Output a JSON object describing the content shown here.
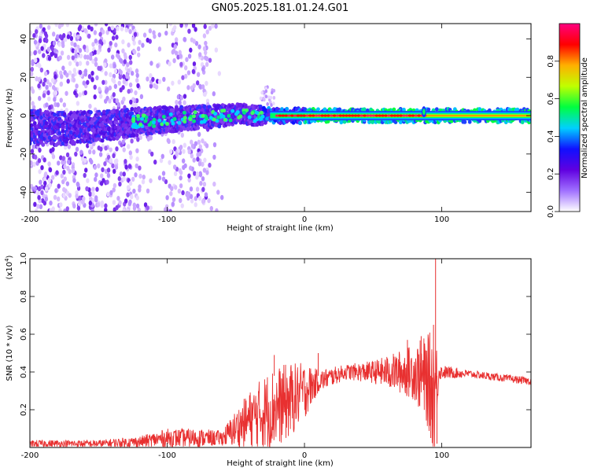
{
  "title": "GN05.2025.181.01.24.G01",
  "chart_data": [
    {
      "type": "heatmap",
      "xlabel": "Height of straight line (km)",
      "ylabel": "Frequency (Hz)",
      "xlim": [
        -200,
        165
      ],
      "ylim": [
        -50,
        48
      ],
      "xticks": [
        -200,
        -100,
        0,
        100
      ],
      "yticks": [
        40,
        20,
        0,
        -20,
        -40
      ],
      "colorbar": {
        "label": "Normalized spectral amplitude",
        "range": [
          0.0,
          1.0
        ],
        "ticks": [
          "0.0",
          "0.2",
          "0.4",
          "0.6",
          "0.8"
        ],
        "colormap": [
          "#ffffff",
          "#a070ff",
          "#6000e0",
          "#1010ff",
          "#00d0ff",
          "#00ff40",
          "#c0ff00",
          "#ffb000",
          "#ff0000",
          "#ff0080"
        ]
      },
      "ridge": [
        {
          "x": -200,
          "y": -6
        },
        {
          "x": -180,
          "y": -7
        },
        {
          "x": -160,
          "y": -6
        },
        {
          "x": -140,
          "y": -5
        },
        {
          "x": -120,
          "y": -3
        },
        {
          "x": -100,
          "y": -2
        },
        {
          "x": -80,
          "y": -1
        },
        {
          "x": -60,
          "y": 0
        },
        {
          "x": -45,
          "y": 1
        },
        {
          "x": -35,
          "y": 0
        },
        {
          "x": -20,
          "y": 0
        },
        {
          "x": 0,
          "y": 0
        },
        {
          "x": 50,
          "y": 0
        },
        {
          "x": 85,
          "y": 0
        },
        {
          "x": 90,
          "y": 0
        },
        {
          "x": 120,
          "y": 0
        },
        {
          "x": 165,
          "y": 0
        }
      ]
    },
    {
      "type": "line",
      "xlabel": "Height of straight line (km)",
      "ylabel": "SNR (10 * v/v)",
      "scale_label": "(x10",
      "scale_exp": "4",
      "scale_close": ")",
      "xlim": [
        -200,
        165
      ],
      "ylim": [
        0,
        1.0
      ],
      "xticks": [
        -200,
        -100,
        0,
        100
      ],
      "yticks": [
        "0.2",
        "0.4",
        "0.6",
        "0.8",
        "1.0"
      ],
      "line_color": "#e83030",
      "envelope": [
        {
          "x": -200,
          "base": 0.02,
          "amp": 0.02
        },
        {
          "x": -150,
          "base": 0.02,
          "amp": 0.02
        },
        {
          "x": -120,
          "base": 0.03,
          "amp": 0.03
        },
        {
          "x": -100,
          "base": 0.05,
          "amp": 0.05
        },
        {
          "x": -80,
          "base": 0.05,
          "amp": 0.05
        },
        {
          "x": -60,
          "base": 0.05,
          "amp": 0.04
        },
        {
          "x": -50,
          "base": 0.1,
          "amp": 0.1
        },
        {
          "x": -40,
          "base": 0.15,
          "amp": 0.15
        },
        {
          "x": -25,
          "base": 0.2,
          "amp": 0.22
        },
        {
          "x": -10,
          "base": 0.25,
          "amp": 0.2
        },
        {
          "x": 0,
          "base": 0.3,
          "amp": 0.15
        },
        {
          "x": 10,
          "base": 0.35,
          "amp": 0.06
        },
        {
          "x": 30,
          "base": 0.4,
          "amp": 0.04
        },
        {
          "x": 50,
          "base": 0.4,
          "amp": 0.06
        },
        {
          "x": 65,
          "base": 0.4,
          "amp": 0.1
        },
        {
          "x": 80,
          "base": 0.4,
          "amp": 0.15
        },
        {
          "x": 90,
          "base": 0.35,
          "amp": 0.25
        },
        {
          "x": 95,
          "base": 0.3,
          "amp": 0.35
        },
        {
          "x": 98,
          "base": 0.4,
          "amp": 0.04
        },
        {
          "x": 120,
          "base": 0.39,
          "amp": 0.02
        },
        {
          "x": 165,
          "base": 0.35,
          "amp": 0.02
        }
      ],
      "spikes": [
        {
          "x": 94,
          "y": 0.65
        },
        {
          "x": 95.5,
          "y": 1.0
        },
        {
          "x": 96.5,
          "y": 0.02
        },
        {
          "x": 92,
          "y": 0.05
        },
        {
          "x": -22,
          "y": 0.49
        },
        {
          "x": 10,
          "y": 0.5
        },
        {
          "x": 75,
          "y": 0.57
        },
        {
          "x": 85,
          "y": 0.59
        }
      ]
    }
  ]
}
